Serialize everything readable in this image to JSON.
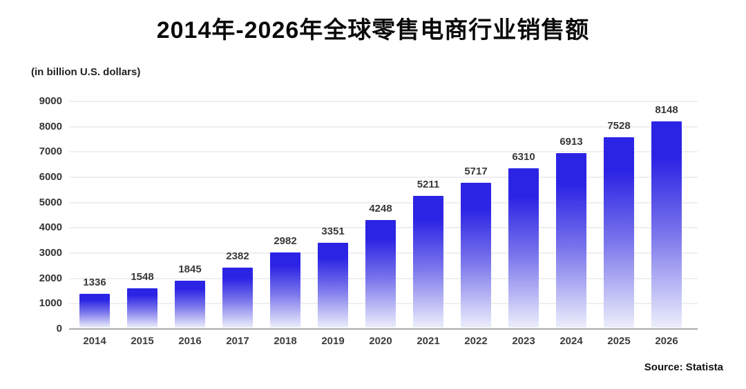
{
  "title": "2014年-2026年全球零售电商行业销售额",
  "unit_label": "(in billion U.S. dollars)",
  "source": "Source: Statista",
  "colors": {
    "bar_top": "#2c24e4",
    "bar_mid": "#7b76ec",
    "bar_bottom": "#eceefb",
    "gridline": "#efefef",
    "baseline": "#a9a9a9",
    "text": "#383838"
  },
  "chart_data": {
    "type": "bar",
    "title": "2014年-2026年全球零售电商行业销售额",
    "categories": [
      "2014",
      "2015",
      "2016",
      "2017",
      "2018",
      "2019",
      "2020",
      "2021",
      "2022",
      "2023",
      "2024",
      "2025",
      "2026"
    ],
    "values": [
      1336,
      1548,
      1845,
      2382,
      2982,
      3351,
      4248,
      5211,
      5717,
      6310,
      6913,
      7528,
      8148
    ],
    "xlabel": "",
    "ylabel": "(in billion U.S. dollars)",
    "ylim": [
      0,
      9000
    ],
    "yticks": [
      0,
      1000,
      2000,
      3000,
      4000,
      5000,
      6000,
      7000,
      8000,
      9000
    ],
    "grid": true,
    "data_labels": true,
    "legend": "none",
    "source": "Source: Statista"
  }
}
